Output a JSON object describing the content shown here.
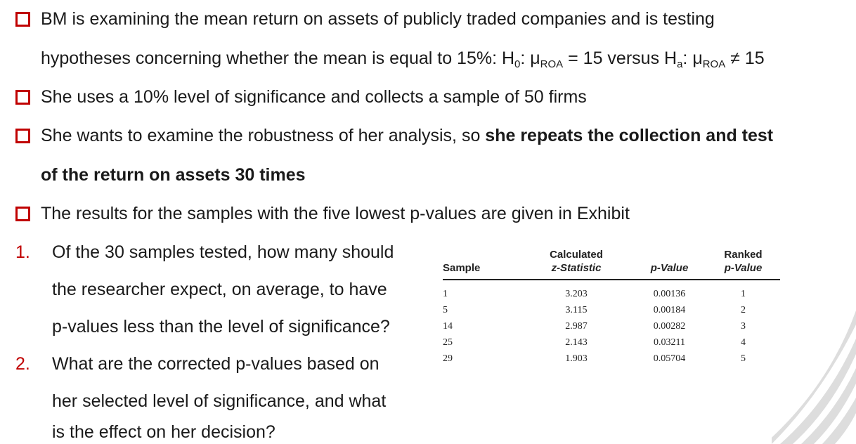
{
  "bullets": {
    "b1_line1": "BM is examining the mean return on assets of publicly traded companies and is testing",
    "b1_line2_pre": "hypotheses concerning whether the mean is equal to 15%: H",
    "b1_h0_sub": "0",
    "b1_mid1": ": μ",
    "b1_roa1": "ROA",
    "b1_mid2": " = 15 versus H",
    "b1_ha_sub": "a",
    "b1_mid3": ": μ",
    "b1_roa2": "ROA",
    "b1_end": " ≠ 15",
    "b2": "She uses a 10% level of significance and collects a sample of 50 firms",
    "b3_pre": "She wants to examine the robustness of her analysis, so ",
    "b3_bold1": "she repeats the collection and test",
    "b3_bold2": "of the return on assets 30 times",
    "b4": "The results for the samples with the five lowest p-values are given in Exhibit"
  },
  "questions": {
    "q1_num": "1.",
    "q1_l1": "Of the 30 samples tested, how many should",
    "q1_l2": "the researcher expect, on average, to have",
    "q1_l3": "p-values less than the level of significance?",
    "q2_num": "2.",
    "q2_l1": "What are the corrected p-values based on",
    "q2_l2": "her selected level of significance, and what",
    "q2_l3": "is the effect on her decision?"
  },
  "exhibit": {
    "headers": {
      "sample": "Sample",
      "zstat_l1": "Calculated",
      "zstat_l2": "z-Statistic",
      "pvalue": "p-Value",
      "ranked_l1": "Ranked",
      "ranked_l2": "p-Value"
    },
    "rows": [
      {
        "sample": "1",
        "z": "3.203",
        "p": "0.00136",
        "rank": "1"
      },
      {
        "sample": "5",
        "z": "3.115",
        "p": "0.00184",
        "rank": "2"
      },
      {
        "sample": "14",
        "z": "2.987",
        "p": "0.00282",
        "rank": "3"
      },
      {
        "sample": "25",
        "z": "2.143",
        "p": "0.03211",
        "rank": "4"
      },
      {
        "sample": "29",
        "z": "1.903",
        "p": "0.05704",
        "rank": "5"
      }
    ]
  },
  "colors": {
    "accent": "#c00000",
    "text": "#1a1a1a",
    "deco": "#d9d9d9"
  }
}
